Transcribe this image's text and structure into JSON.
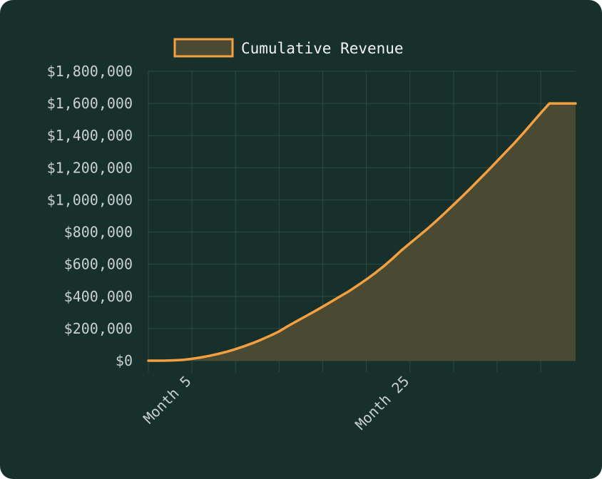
{
  "colors": {
    "background": "#17302c",
    "grid": "#2c4842",
    "line": "#f5a040",
    "area": "#4a4a32",
    "text": "#c9d1cf"
  },
  "chart_data": {
    "type": "area",
    "title": "",
    "xlabel": "",
    "ylabel": "",
    "legend_position": "top-center",
    "grid": true,
    "x": [
      0,
      1,
      2,
      3,
      4,
      5,
      6,
      7,
      8,
      9,
      10,
      11,
      12,
      13,
      14,
      15,
      16,
      17,
      18,
      19,
      20,
      21,
      22,
      23,
      24,
      25,
      26,
      27,
      28,
      29,
      30,
      31,
      32,
      33,
      34,
      35,
      36,
      37,
      38,
      39,
      40,
      41,
      42,
      43,
      44,
      45,
      46,
      47,
      48,
      49
    ],
    "x_ticks": [
      {
        "index": 5,
        "label": "Month 5"
      },
      {
        "index": 30,
        "label": "Month 25"
      }
    ],
    "ylim": [
      0,
      1800000
    ],
    "y_tick_labels": [
      "$0",
      "$200,000",
      "$400,000",
      "$600,000",
      "$800,000",
      "$1,000,000",
      "$1,200,000",
      "$1,400,000",
      "$1,600,000",
      "$1,800,000"
    ],
    "series": [
      {
        "name": "Cumulative Revenue",
        "values": [
          0,
          0,
          500,
          2000,
          5000,
          12000,
          20000,
          30000,
          42000,
          56000,
          72000,
          90000,
          110000,
          132000,
          156000,
          182000,
          215000,
          245000,
          275000,
          305000,
          336000,
          368000,
          400000,
          432000,
          468000,
          505000,
          545000,
          588000,
          635000,
          685000,
          730000,
          775000,
          820000,
          868000,
          918000,
          970000,
          1022000,
          1075000,
          1130000,
          1185000,
          1242000,
          1298000,
          1355000,
          1415000,
          1478000,
          1540000,
          1600000,
          1600000,
          1600000,
          1600000
        ]
      }
    ]
  }
}
